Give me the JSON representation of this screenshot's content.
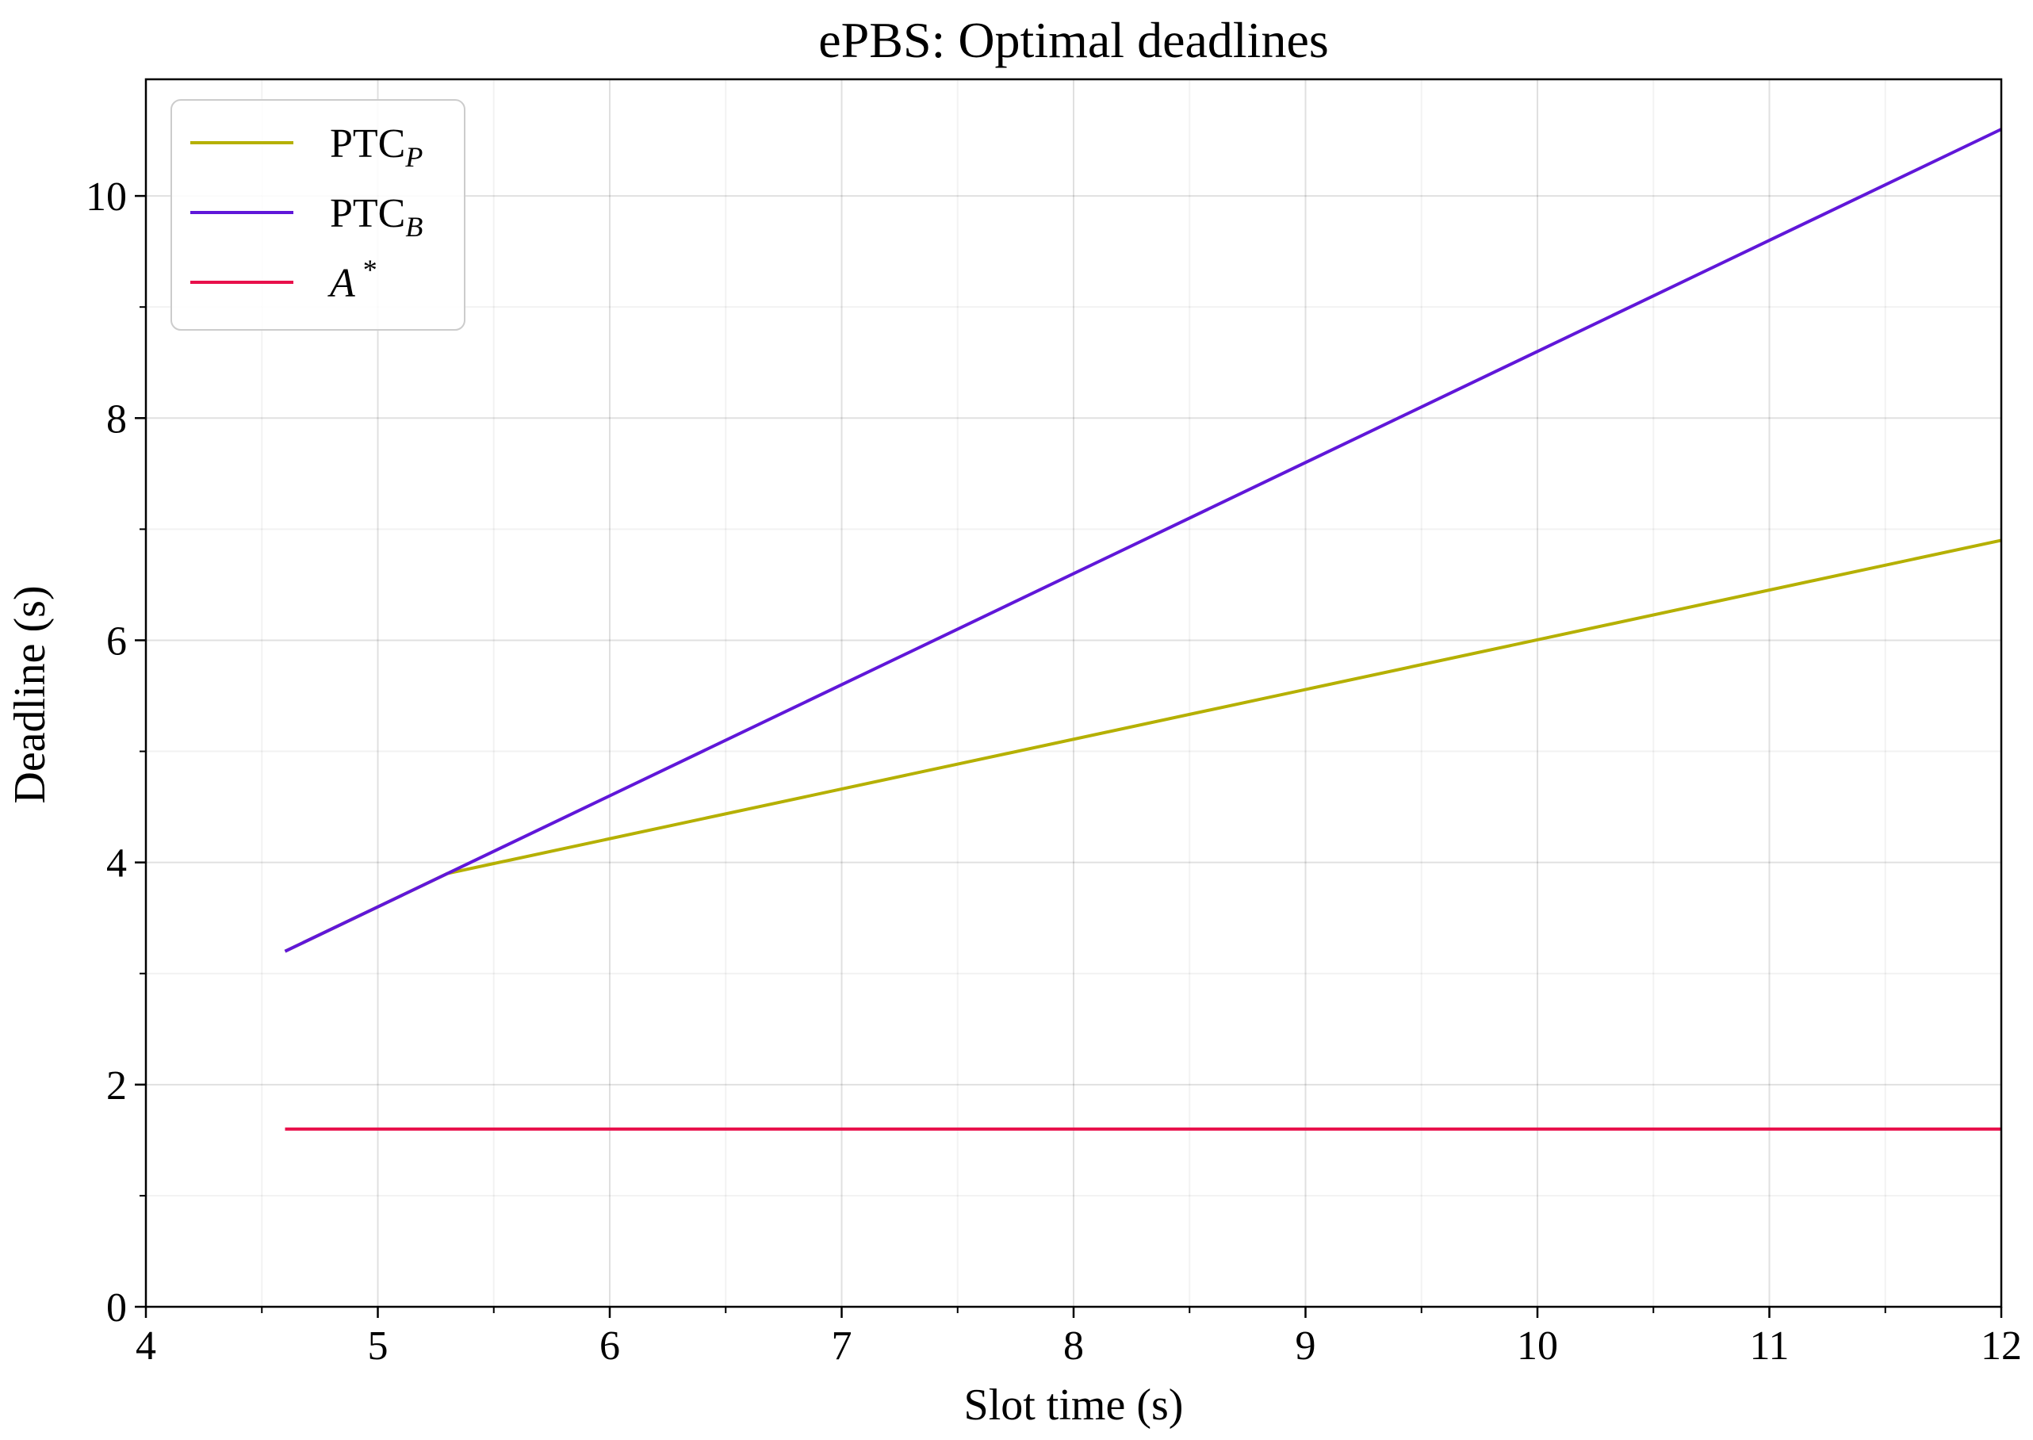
{
  "chart_data": {
    "type": "line",
    "title": "ePBS: Optimal deadlines",
    "xlabel": "Slot time (s)",
    "ylabel": "Deadline (s)",
    "xlim": [
      4,
      12
    ],
    "ylim": [
      0,
      11.05
    ],
    "xticks": [
      4,
      5,
      6,
      7,
      8,
      9,
      10,
      11,
      12
    ],
    "xtick_labels": [
      "4",
      "5",
      "6",
      "7",
      "8",
      "9",
      "10",
      "11",
      "12"
    ],
    "yticks": [
      0,
      2,
      4,
      6,
      8,
      10
    ],
    "ytick_labels": [
      "0",
      "2",
      "4",
      "6",
      "8",
      "10"
    ],
    "x_minor_ticks": [
      4.5,
      5.5,
      6.5,
      7.5,
      8.5,
      9.5,
      10.5,
      11.5
    ],
    "y_minor_ticks": [
      1,
      3,
      5,
      7,
      9
    ],
    "grid": true,
    "legend_position": "top-left",
    "series": [
      {
        "key": "ptc_p",
        "name_main": "PTC",
        "name_sub": "P",
        "color": "#b5b000",
        "points": [
          [
            4.6,
            3.2
          ],
          [
            5.3,
            3.9
          ],
          [
            12,
            6.9
          ]
        ]
      },
      {
        "key": "ptc_b",
        "name_main": "PTC",
        "name_sub": "B",
        "color": "#6017d9",
        "points": [
          [
            4.6,
            3.2
          ],
          [
            12,
            10.6
          ]
        ]
      },
      {
        "key": "a_star",
        "name_main": "A",
        "name_sup": "*",
        "color": "#e8104b",
        "points": [
          [
            4.6,
            1.6
          ],
          [
            12,
            1.6
          ]
        ]
      }
    ]
  }
}
